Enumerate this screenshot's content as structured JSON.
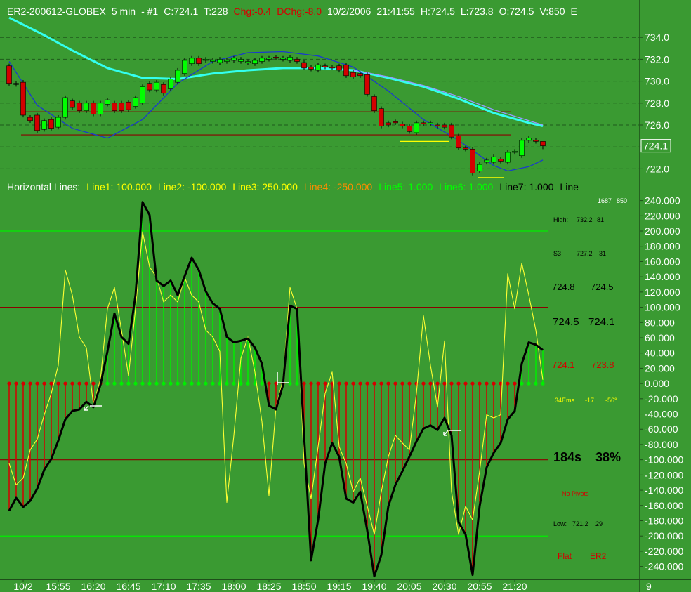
{
  "chart_data": [
    {
      "type": "candlestick",
      "header": [
        {
          "text": "ER2-200612-GLOBEX",
          "color": "#ffffff"
        },
        {
          "text": "5 min",
          "color": "#ffffff"
        },
        {
          "text": "- #1",
          "color": "#ffffff"
        },
        {
          "text": "C:724.1",
          "color": "#ffffff"
        },
        {
          "text": "T:228",
          "color": "#ffffff"
        },
        {
          "text": "Chg:-0.4",
          "color": "#d40000"
        },
        {
          "text": "DChg:-8.0",
          "color": "#d40000"
        },
        {
          "text": "10/2/2006",
          "color": "#ffffff"
        },
        {
          "text": "21:41:55",
          "color": "#ffffff"
        },
        {
          "text": "H:724.5",
          "color": "#ffffff"
        },
        {
          "text": "L:723.8",
          "color": "#ffffff"
        },
        {
          "text": "O:724.5",
          "color": "#ffffff"
        },
        {
          "text": "V:850",
          "color": "#ffffff"
        },
        {
          "text": "E",
          "color": "#ffffff"
        }
      ],
      "open": [
        731.4,
        729.8,
        729.9,
        726.7,
        726.9,
        725.6,
        726.5,
        725.8,
        726.7,
        728.2,
        728.0,
        727.3,
        728.0,
        727.0,
        727.9,
        728.0,
        728.0,
        728.1,
        727.7,
        728.0,
        729.8,
        729.2,
        729.7,
        729.3,
        729.9,
        730.7,
        731.6,
        732.1,
        731.9,
        731.8,
        731.7,
        731.8,
        731.9,
        731.8,
        731.7,
        731.6,
        731.8,
        732.0,
        732.2,
        732.0,
        731.9,
        732.0,
        731.7,
        731.3,
        731.0,
        731.4,
        731.3,
        731.4,
        731.5,
        730.8,
        730.7,
        730.6,
        728.6,
        727.5,
        726.2,
        726.3,
        726.1,
        725.9,
        725.3,
        726.2,
        726.1,
        726.0,
        726.0,
        726.0,
        725.0,
        723.9,
        723.8,
        721.8,
        722.6,
        722.6,
        722.9,
        722.6,
        723.5,
        723.2,
        724.6,
        724.6,
        724.5
      ],
      "high": [
        731.6,
        730.0,
        730.1,
        726.9,
        727.1,
        726.6,
        726.7,
        726.9,
        728.7,
        728.4,
        728.2,
        728.2,
        728.2,
        728.2,
        728.5,
        728.2,
        728.2,
        728.3,
        728.7,
        729.7,
        730.0,
        730.1,
        729.9,
        730.4,
        731.2,
        732.1,
        732.3,
        732.3,
        732.2,
        732.1,
        732.2,
        732.1,
        732.3,
        732.2,
        732.0,
        732.1,
        732.3,
        732.3,
        732.4,
        732.3,
        732.4,
        732.2,
        731.9,
        731.5,
        731.7,
        731.6,
        731.5,
        731.6,
        731.7,
        731.0,
        730.9,
        730.8,
        728.8,
        727.7,
        726.4,
        726.5,
        726.3,
        726.1,
        726.4,
        726.4,
        726.4,
        726.2,
        726.2,
        726.2,
        725.2,
        724.1,
        724.0,
        722.6,
        723.0,
        723.3,
        723.1,
        723.7,
        723.8,
        724.8,
        725.0,
        724.8,
        724.5
      ],
      "low": [
        729.6,
        729.5,
        726.7,
        726.2,
        725.3,
        725.4,
        725.5,
        725.6,
        726.5,
        727.4,
        727.1,
        727.1,
        726.8,
        726.8,
        727.7,
        727.1,
        727.1,
        727.2,
        727.5,
        727.8,
        729.0,
        729.0,
        728.7,
        729.1,
        729.7,
        730.5,
        731.4,
        731.4,
        731.7,
        731.6,
        731.5,
        731.6,
        731.7,
        731.6,
        731.5,
        731.4,
        731.6,
        731.8,
        731.9,
        731.8,
        731.7,
        731.6,
        731.0,
        730.9,
        730.8,
        731.1,
        731.0,
        730.8,
        730.3,
        730.2,
        730.3,
        728.6,
        727.1,
        725.7,
        725.8,
        726.0,
        725.7,
        725.2,
        725.1,
        725.9,
        725.9,
        725.7,
        725.6,
        724.7,
        723.7,
        723.6,
        721.4,
        721.6,
        722.4,
        722.4,
        722.5,
        722.4,
        723.3,
        723.0,
        724.4,
        724.3,
        723.8
      ],
      "close": [
        729.8,
        729.7,
        726.9,
        726.4,
        725.5,
        726.4,
        725.7,
        726.7,
        728.5,
        727.6,
        727.3,
        728.0,
        727.0,
        728.0,
        728.3,
        727.3,
        727.3,
        727.4,
        728.5,
        729.5,
        729.2,
        729.9,
        728.9,
        730.2,
        731.0,
        731.9,
        732.1,
        731.6,
        732.0,
        731.9,
        732.0,
        731.9,
        732.1,
        732.0,
        731.8,
        731.9,
        732.1,
        732.1,
        732.1,
        732.1,
        732.2,
        731.8,
        731.2,
        731.1,
        731.5,
        731.3,
        731.2,
        731.0,
        730.5,
        730.4,
        730.5,
        728.8,
        727.3,
        725.9,
        726.0,
        726.2,
        725.9,
        725.4,
        726.2,
        726.1,
        726.2,
        725.9,
        725.8,
        724.9,
        723.9,
        723.8,
        721.6,
        722.4,
        722.8,
        723.1,
        722.7,
        723.5,
        723.6,
        724.6,
        724.8,
        724.5,
        724.1
      ],
      "up_color": "#00ff00",
      "down_color": "#d40000",
      "series": [
        {
          "color": "#33ffee",
          "x": [
            0,
            5,
            9,
            14,
            19,
            24,
            29,
            34,
            39,
            44,
            49,
            54,
            59,
            64,
            69,
            74,
            76
          ],
          "values": [
            735.8,
            734.2,
            732.8,
            731.2,
            730.3,
            730.2,
            730.7,
            731.0,
            731.2,
            731.2,
            731.0,
            730.3,
            729.5,
            728.4,
            727.1,
            726.2,
            725.9
          ]
        },
        {
          "color": "#9999ff",
          "x": [
            49,
            54,
            59,
            64,
            69,
            74,
            76
          ],
          "values": [
            731.0,
            730.4,
            729.6,
            728.6,
            727.4,
            726.4,
            726.0
          ]
        },
        {
          "color": "#1a3acc",
          "x": [
            0,
            4,
            9,
            14,
            19,
            24,
            29,
            34,
            39,
            44,
            49,
            54,
            59,
            64,
            69,
            71,
            74,
            76
          ],
          "values": [
            731.8,
            727.8,
            725.7,
            724.8,
            726.5,
            729.8,
            731.8,
            732.6,
            732.7,
            732.3,
            731.3,
            729.1,
            726.5,
            724.6,
            722.3,
            721.8,
            722.2,
            722.8
          ]
        }
      ],
      "levels": [
        {
          "value": 727.2,
          "from": 1.7,
          "to": 71.5,
          "color": "#8b0000"
        },
        {
          "value": 725.1,
          "from": 1.7,
          "to": 71.5,
          "color": "#8b0000"
        },
        {
          "value": 724.5,
          "from": 55.7,
          "to": 62.7,
          "color": "#ffff00"
        },
        {
          "value": 721.2,
          "from": 66.7,
          "to": 70.5,
          "color": "#ffff00"
        }
      ],
      "last_price": {
        "value": 724.1,
        "label": "724.1"
      },
      "xlim": [
        -1,
        90
      ],
      "ylim": [
        721,
        736
      ],
      "yticks": [
        {
          "value": 722,
          "label": "722.0"
        },
        {
          "value": 724,
          "label": "724.0"
        },
        {
          "value": 726,
          "label": "726.0"
        },
        {
          "value": 728,
          "label": "728.0"
        },
        {
          "value": 730,
          "label": "730.0"
        },
        {
          "value": 732,
          "label": "732.0"
        },
        {
          "value": 734,
          "label": "734.0"
        }
      ],
      "grid": true
    },
    {
      "type": "line",
      "legend": [
        {
          "text": "Horizontal Lines:",
          "color": "#ffffff"
        },
        {
          "text": "Line1: 100.000",
          "color": "#ffff00"
        },
        {
          "text": "Line2: -100.000",
          "color": "#ffff00"
        },
        {
          "text": "Line3: 250.000",
          "color": "#ffff00"
        },
        {
          "text": "Line4: -250.000",
          "color": "#ff8c00"
        },
        {
          "text": "Line5: 1.000",
          "color": "#00ff00"
        },
        {
          "text": "Line6: 1.000",
          "color": "#00ff00"
        },
        {
          "text": "Line7: 1.000",
          "color": "#000000"
        },
        {
          "text": "Line",
          "color": "#000000"
        }
      ],
      "series": [
        {
          "color": "#000000",
          "stems": true,
          "values": [
            -167,
            -150,
            -162,
            -154,
            -138,
            -113,
            -99,
            -75,
            -47,
            -36,
            -34,
            -24,
            -31,
            -2,
            42,
            92,
            61,
            52,
            116,
            238,
            221,
            135,
            128,
            135,
            116,
            141,
            165,
            149,
            121,
            105,
            98,
            61,
            54,
            56,
            59,
            47,
            26,
            -29,
            -34,
            -2,
            102,
            98,
            -68,
            -232,
            -179,
            -105,
            -78,
            -96,
            -151,
            -156,
            -142,
            -193,
            -253,
            -225,
            -161,
            -133,
            -115,
            -96,
            -76,
            -59,
            -55,
            -61,
            -45,
            -68,
            -182,
            -198,
            -251,
            -161,
            -110,
            -91,
            -78,
            -47,
            -36,
            26,
            54,
            51,
            44
          ]
        },
        {
          "color": "#ffff33",
          "values": [
            -105,
            -133,
            -124,
            -87,
            -73,
            -41,
            -13,
            24,
            149,
            116,
            61,
            47,
            -27,
            5,
            98,
            126,
            70,
            10,
            98,
            199,
            153,
            139,
            107,
            116,
            107,
            139,
            116,
            107,
            70,
            61,
            42,
            -156,
            -68,
            33,
            61,
            15,
            -50,
            -147,
            -31,
            5,
            126,
            98,
            -105,
            -151,
            -83,
            -13,
            15,
            -83,
            -105,
            -142,
            -124,
            -161,
            -198,
            -142,
            -96,
            -68,
            -78,
            -87,
            -13,
            89,
            24,
            -31,
            56,
            -142,
            -198,
            -161,
            -179,
            -115,
            -41,
            -45,
            -41,
            144,
            98,
            158,
            116,
            70,
            5
          ]
        }
      ],
      "pos_color": "#00ee00",
      "neg_color": "#d40000",
      "hlines": [
        {
          "value": 200,
          "color": "#00ee00"
        },
        {
          "value": 100,
          "color": "#8b0000"
        },
        {
          "value": -100,
          "color": "#8b0000"
        },
        {
          "value": -200,
          "color": "#00ee00"
        }
      ],
      "annotations": [
        {
          "parts": [
            "1687",
            "850"
          ],
          "color": "#ffffff"
        },
        {
          "parts": [
            "High:",
            "732.2",
            "81"
          ],
          "color": "#000000"
        },
        {
          "parts": [
            "S3",
            "727.2",
            "31"
          ],
          "color": "#000000"
        },
        {
          "parts": [
            "724.8",
            "724.5"
          ],
          "color": "#000000"
        },
        {
          "parts": [
            "724.5",
            "724.1"
          ],
          "color": "#000000"
        },
        {
          "parts": [
            "724.1",
            "723.8"
          ],
          "color": "#d40000"
        },
        {
          "parts": [
            "34Ema",
            "-17",
            "-56°"
          ],
          "color": "#ffff00"
        },
        {
          "parts": [
            "184s",
            "38%"
          ],
          "color": "#000000"
        },
        {
          "parts": [
            "No Pivots"
          ],
          "color": "#d40000"
        },
        {
          "parts": [
            "Low:",
            "721.2",
            "29"
          ],
          "color": "#000000"
        },
        {
          "parts": [
            "Flat",
            "ER2"
          ],
          "color": "#d40000"
        }
      ],
      "xlim": [
        -1,
        90
      ],
      "ylim": [
        -256,
        247
      ],
      "xticks": [
        {
          "value": 2,
          "label": "10/2"
        },
        {
          "value": 7,
          "label": "15:55"
        },
        {
          "value": 12,
          "label": "16:20"
        },
        {
          "value": 17,
          "label": "16:45"
        },
        {
          "value": 22,
          "label": "17:10"
        },
        {
          "value": 27,
          "label": "17:35"
        },
        {
          "value": 32,
          "label": "18:00"
        },
        {
          "value": 37,
          "label": "18:25"
        },
        {
          "value": 42,
          "label": "18:50"
        },
        {
          "value": 47,
          "label": "19:15"
        },
        {
          "value": 52,
          "label": "19:40"
        },
        {
          "value": 57,
          "label": "20:05"
        },
        {
          "value": 62,
          "label": "20:30"
        },
        {
          "value": 67,
          "label": "20:55"
        },
        {
          "value": 72,
          "label": "21:20"
        }
      ],
      "corner_label": "9",
      "yticks": [
        {
          "value": 240,
          "label": "240.000"
        },
        {
          "value": 220,
          "label": "220.000"
        },
        {
          "value": 200,
          "label": "200.000"
        },
        {
          "value": 180,
          "label": "180.000"
        },
        {
          "value": 160,
          "label": "160.000"
        },
        {
          "value": 140,
          "label": "140.000"
        },
        {
          "value": 120,
          "label": "120.000"
        },
        {
          "value": 100,
          "label": "100.000"
        },
        {
          "value": 80,
          "label": "80.000"
        },
        {
          "value": 60,
          "label": "60.000"
        },
        {
          "value": 40,
          "label": "40.000"
        },
        {
          "value": 20,
          "label": "20.000"
        },
        {
          "value": 0,
          "label": "0.000"
        },
        {
          "value": -20,
          "label": "-20.000"
        },
        {
          "value": -40,
          "label": "-40.000"
        },
        {
          "value": -60,
          "label": "-60.000"
        },
        {
          "value": -80,
          "label": "-80.000"
        },
        {
          "value": -100,
          "label": "-100.000"
        },
        {
          "value": -120,
          "label": "-120.000"
        },
        {
          "value": -140,
          "label": "-140.000"
        },
        {
          "value": -160,
          "label": "-160.000"
        },
        {
          "value": -180,
          "label": "-180.000"
        },
        {
          "value": -200,
          "label": "-200.000"
        },
        {
          "value": -220,
          "label": "-220.000"
        },
        {
          "value": -240,
          "label": "-240.000"
        }
      ]
    }
  ]
}
